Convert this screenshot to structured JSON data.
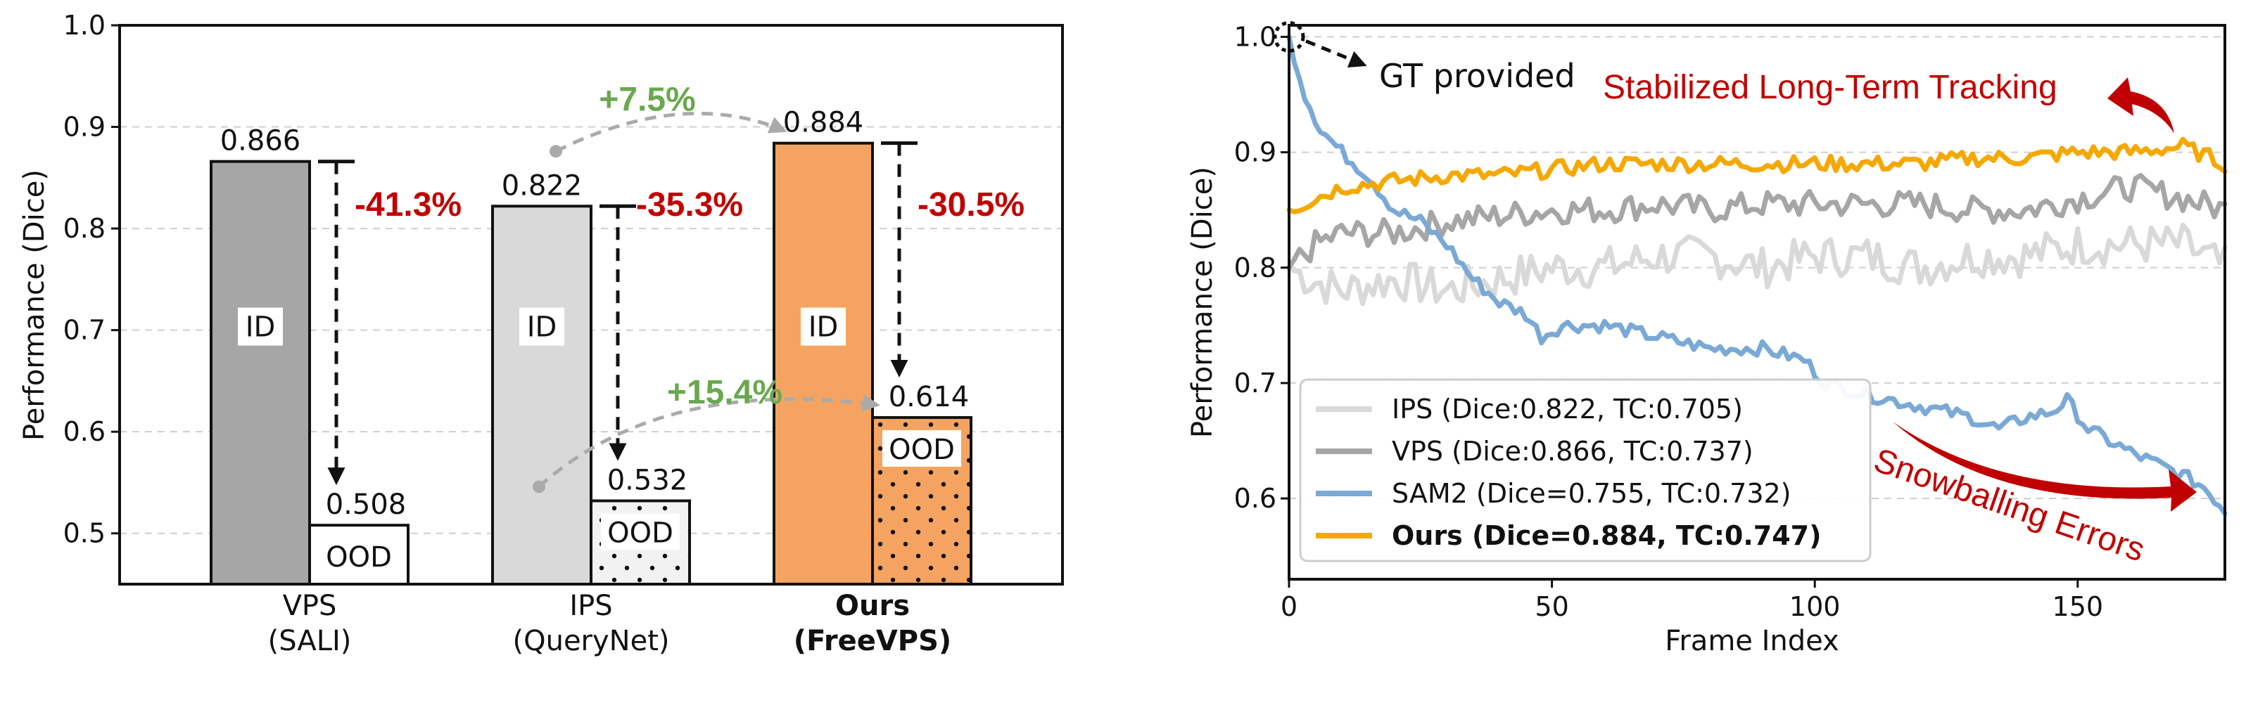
{
  "chart_data": [
    {
      "type": "bar",
      "title": "",
      "xlabel": "",
      "ylabel": "Performance (Dice)",
      "ylim": [
        0.45,
        1.0
      ],
      "yticks": [
        "0.5",
        "0.6",
        "0.7",
        "0.8",
        "0.9",
        "1.0"
      ],
      "grid": true,
      "groups": [
        {
          "line1": "VPS",
          "line2": "(SALI)",
          "bold": false,
          "id": 0.866,
          "ood": 0.508,
          "id_label": "0.866",
          "ood_label": "0.508",
          "drop": "-41.3%",
          "color": "#a6a6a6",
          "ood_color": "#ffffff",
          "ood_pattern": "none"
        },
        {
          "line1": "IPS",
          "line2": "(QueryNet)",
          "bold": false,
          "id": 0.822,
          "ood": 0.532,
          "id_label": "0.822",
          "ood_label": "0.532",
          "drop": "-35.3%",
          "color": "#d9d9d9",
          "ood_color": "#f2f2f2",
          "ood_pattern": "dots"
        },
        {
          "line1": "Ours",
          "line2": "(FreeVPS)",
          "bold": true,
          "id": 0.884,
          "ood": 0.614,
          "id_label": "0.884",
          "ood_label": "0.614",
          "drop": "-30.5%",
          "color": "#f4a460",
          "ood_color": "#f4a460",
          "ood_pattern": "dots"
        }
      ],
      "box_labels": {
        "id": "ID",
        "ood": "OOD"
      },
      "gains": [
        {
          "label": "+7.5%",
          "from_group": 1,
          "to_group": 2,
          "split": "ID"
        },
        {
          "label": "+15.4%",
          "from_group": 1,
          "to_group": 2,
          "split": "OOD"
        }
      ]
    },
    {
      "type": "line",
      "xlabel": "Frame Index",
      "ylabel": "Performance (Dice)",
      "xlim": [
        0,
        178
      ],
      "ylim": [
        0.53,
        1.01
      ],
      "xticks": [
        "0",
        "50",
        "100",
        "150"
      ],
      "yticks": [
        "0.6",
        "0.7",
        "0.8",
        "0.9",
        "1.0"
      ],
      "grid": true,
      "legend_position": "lower-left",
      "series": [
        {
          "name": "IPS (Dice:0.822, TC:0.705)",
          "color": "#d9d9d9",
          "bold": false,
          "anchors": [
            [
              0,
              0.8
            ],
            [
              4,
              0.79
            ],
            [
              10,
              0.78
            ],
            [
              20,
              0.79
            ],
            [
              30,
              0.78
            ],
            [
              40,
              0.79
            ],
            [
              50,
              0.8
            ],
            [
              60,
              0.8
            ],
            [
              70,
              0.81
            ],
            [
              80,
              0.81
            ],
            [
              90,
              0.8
            ],
            [
              100,
              0.81
            ],
            [
              110,
              0.81
            ],
            [
              120,
              0.8
            ],
            [
              130,
              0.81
            ],
            [
              140,
              0.81
            ],
            [
              150,
              0.82
            ],
            [
              160,
              0.82
            ],
            [
              170,
              0.82
            ],
            [
              178,
              0.8
            ]
          ]
        },
        {
          "name": "VPS (Dice:0.866, TC:0.737)",
          "color": "#a6a6a6",
          "bold": false,
          "anchors": [
            [
              0,
              0.8
            ],
            [
              5,
              0.82
            ],
            [
              10,
              0.83
            ],
            [
              20,
              0.83
            ],
            [
              30,
              0.84
            ],
            [
              40,
              0.845
            ],
            [
              50,
              0.85
            ],
            [
              60,
              0.85
            ],
            [
              70,
              0.855
            ],
            [
              80,
              0.85
            ],
            [
              90,
              0.855
            ],
            [
              100,
              0.855
            ],
            [
              110,
              0.855
            ],
            [
              120,
              0.855
            ],
            [
              130,
              0.85
            ],
            [
              140,
              0.85
            ],
            [
              150,
              0.86
            ],
            [
              160,
              0.87
            ],
            [
              170,
              0.86
            ],
            [
              178,
              0.85
            ]
          ]
        },
        {
          "name": "SAM2 (Dice=0.755, TC:0.732)",
          "color": "#7aa9d6",
          "bold": false,
          "anchors": [
            [
              0,
              1.0
            ],
            [
              3,
              0.95
            ],
            [
              6,
              0.92
            ],
            [
              10,
              0.9
            ],
            [
              15,
              0.88
            ],
            [
              20,
              0.85
            ],
            [
              25,
              0.84
            ],
            [
              30,
              0.82
            ],
            [
              35,
              0.79
            ],
            [
              40,
              0.77
            ],
            [
              45,
              0.76
            ],
            [
              48,
              0.74
            ],
            [
              52,
              0.75
            ],
            [
              60,
              0.75
            ],
            [
              70,
              0.74
            ],
            [
              80,
              0.73
            ],
            [
              90,
              0.73
            ],
            [
              98,
              0.72
            ],
            [
              100,
              0.71
            ],
            [
              102,
              0.7
            ],
            [
              110,
              0.69
            ],
            [
              120,
              0.68
            ],
            [
              130,
              0.67
            ],
            [
              135,
              0.66
            ],
            [
              140,
              0.67
            ],
            [
              145,
              0.675
            ],
            [
              148,
              0.685
            ],
            [
              152,
              0.66
            ],
            [
              160,
              0.64
            ],
            [
              165,
              0.63
            ],
            [
              170,
              0.62
            ],
            [
              174,
              0.61
            ],
            [
              178,
              0.59
            ]
          ]
        },
        {
          "name": "Ours (Dice=0.884, TC:0.747)",
          "color": "#f5a800",
          "bold": true,
          "anchors": [
            [
              0,
              0.85
            ],
            [
              5,
              0.86
            ],
            [
              10,
              0.87
            ],
            [
              20,
              0.875
            ],
            [
              30,
              0.88
            ],
            [
              40,
              0.88
            ],
            [
              50,
              0.885
            ],
            [
              60,
              0.89
            ],
            [
              70,
              0.89
            ],
            [
              80,
              0.89
            ],
            [
              90,
              0.89
            ],
            [
              100,
              0.89
            ],
            [
              110,
              0.89
            ],
            [
              120,
              0.89
            ],
            [
              130,
              0.895
            ],
            [
              140,
              0.895
            ],
            [
              150,
              0.9
            ],
            [
              160,
              0.9
            ],
            [
              170,
              0.905
            ],
            [
              178,
              0.89
            ]
          ]
        }
      ],
      "annotations": {
        "gt": "GT provided",
        "stabilized": "Stabilized Long-Term Tracking",
        "snowball": "Snowballing Errors"
      }
    }
  ]
}
